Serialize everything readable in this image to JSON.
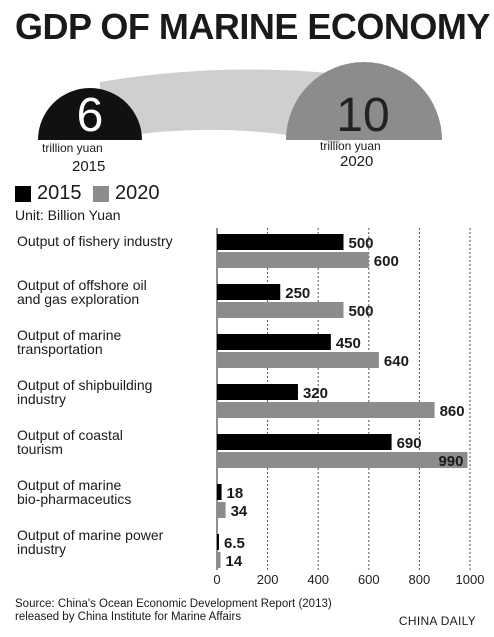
{
  "title": "GDP OF MARINE ECONOMY",
  "hero": {
    "left": {
      "value": "6",
      "unit": "trillion yuan",
      "year": "2015"
    },
    "right": {
      "value": "10",
      "unit": "trillion yuan",
      "year": "2020"
    }
  },
  "legend": {
    "label_2015": "2015",
    "label_2020": "2020"
  },
  "unit_label": "Unit: Billion Yuan",
  "colors": {
    "series_2015": "#000000",
    "series_2020": "#8c8c8c",
    "hero_dark": "#111111",
    "hero_gray": "#8c8c8c"
  },
  "chart_data": {
    "type": "bar",
    "orientation": "horizontal",
    "categories": [
      [
        "Output of fishery industry"
      ],
      [
        "Output of offshore oil",
        "and gas exploration"
      ],
      [
        "Output of marine",
        "transportation"
      ],
      [
        "Output of shipbuilding",
        "industry"
      ],
      [
        "Output of coastal",
        "tourism"
      ],
      [
        "Output of marine",
        "bio-pharmaceutics"
      ],
      [
        "Output of marine power",
        "industry"
      ]
    ],
    "series": [
      {
        "name": "2015",
        "values": [
          500,
          250,
          450,
          320,
          690,
          18,
          6.5
        ],
        "labels": [
          "500",
          "250",
          "450",
          "320",
          "690",
          "18",
          "6.5"
        ]
      },
      {
        "name": "2020",
        "values": [
          600,
          500,
          640,
          860,
          990,
          34,
          14
        ],
        "labels": [
          "600",
          "500",
          "640",
          "860",
          "990",
          "34",
          "14"
        ]
      }
    ],
    "xlim": [
      0,
      1000
    ],
    "xticks": [
      0,
      200,
      400,
      600,
      800,
      1000
    ],
    "grid": "dashed vertical at ticks"
  },
  "source": [
    "Source: China's Ocean Economic Development Report (2013)",
    "released by China Institute for Marine Affairs"
  ],
  "credit": "CHINA DAILY"
}
